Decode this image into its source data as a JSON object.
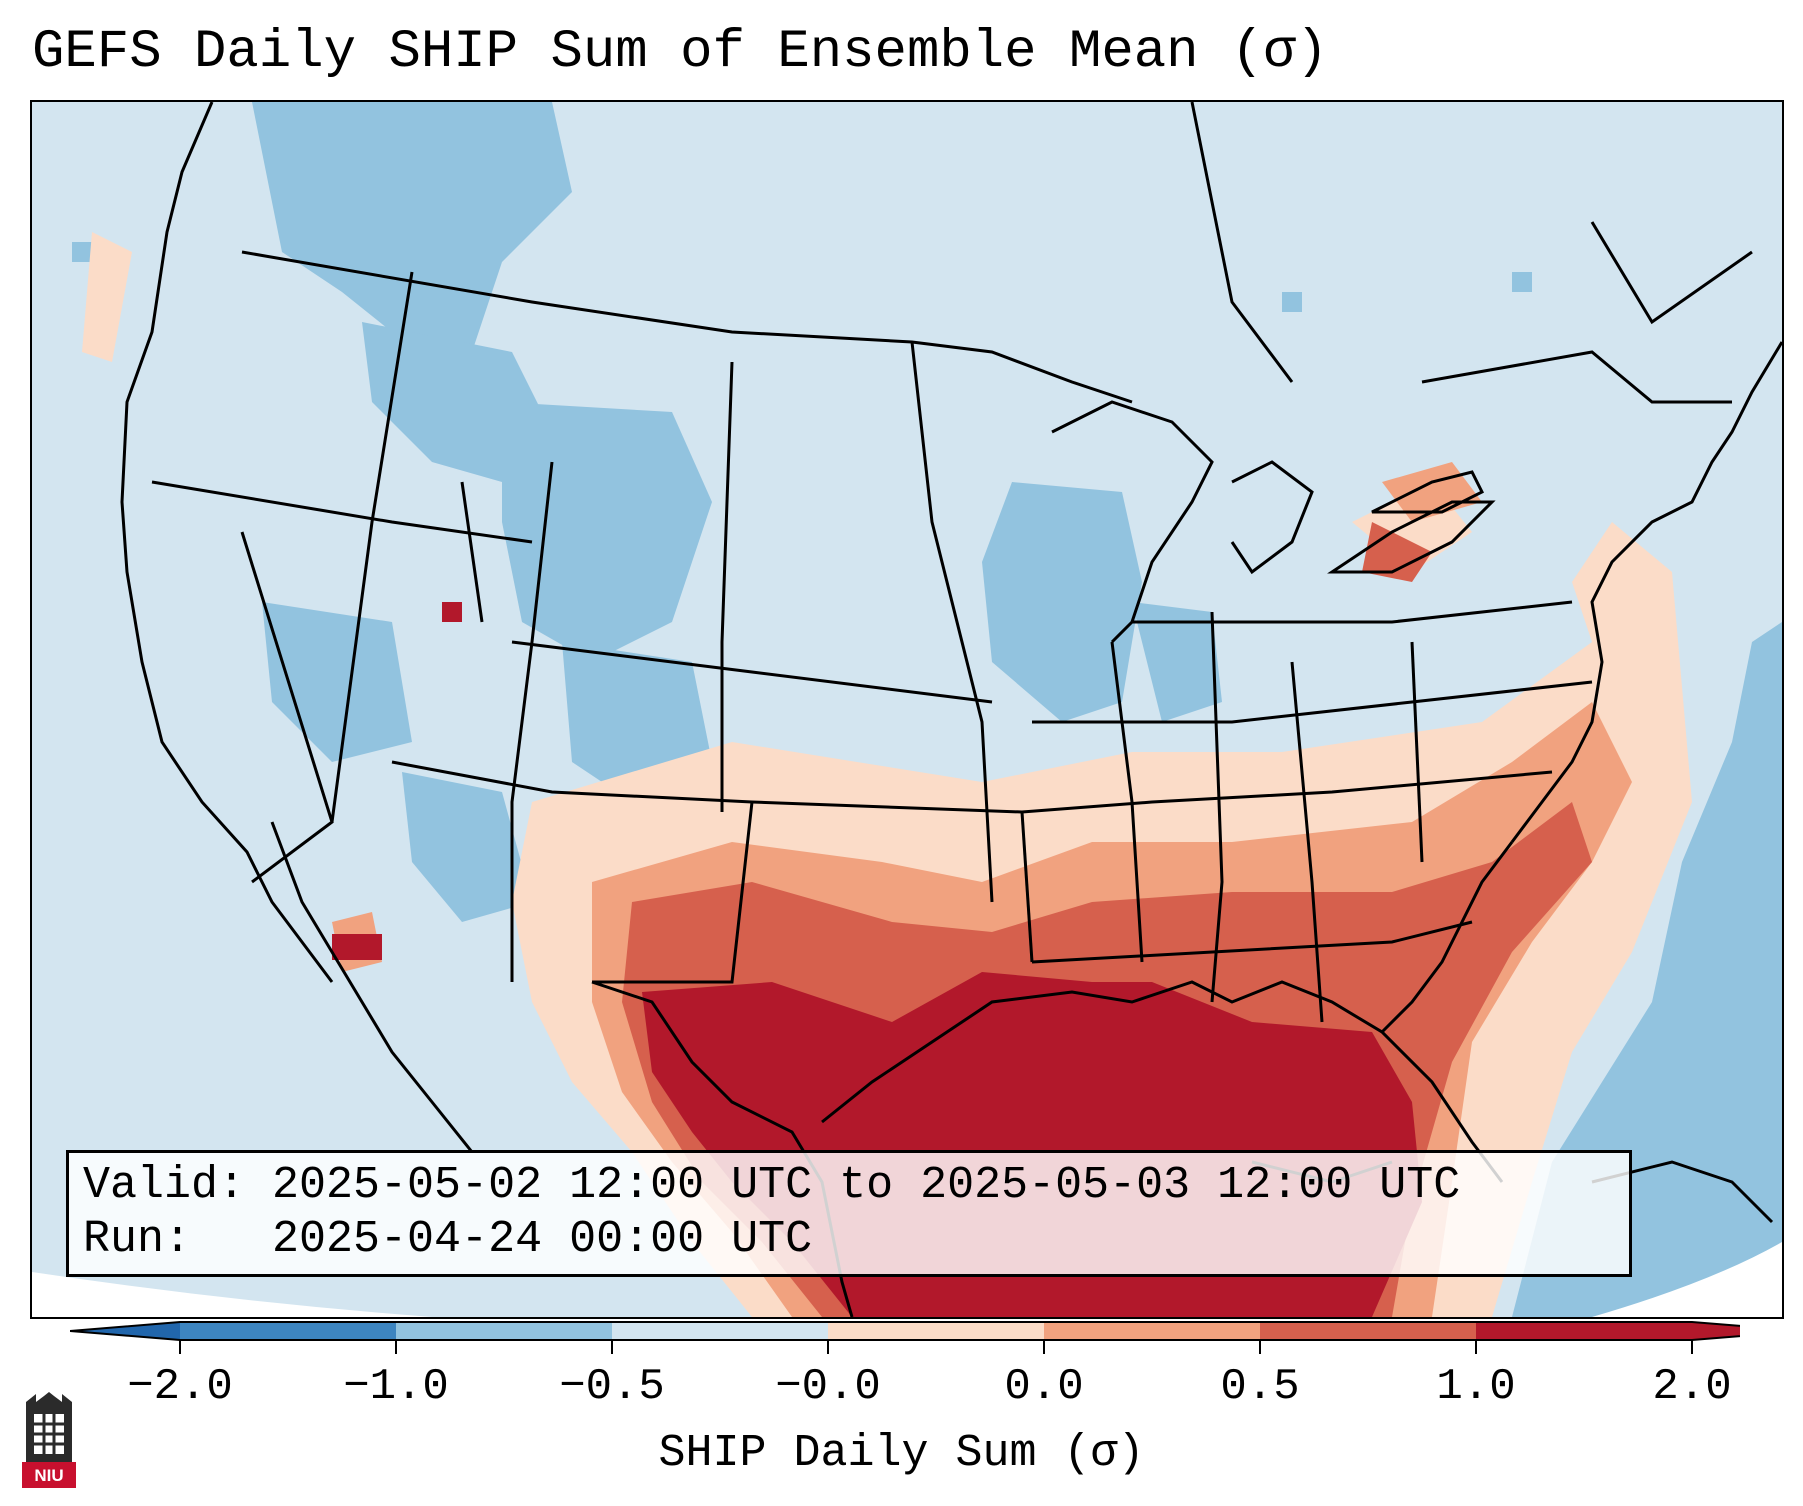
{
  "title": "GEFS Daily SHIP Sum of Ensemble Mean (σ)",
  "info": {
    "valid": "Valid: 2025-05-02 12:00 UTC to 2025-05-03 12:00 UTC",
    "run": "Run:   2025-04-24 00:00 UTC"
  },
  "colorbar": {
    "label": "SHIP Daily Sum (σ)",
    "ticks": [
      "−2.0",
      "−1.0",
      "−0.5",
      "−0.0",
      "0.0",
      "0.5",
      "1.0",
      "2.0"
    ],
    "colors": [
      "#3d85c0",
      "#92c3df",
      "#d3e5f0",
      "#fbdcc8",
      "#f1a27f",
      "#d6604d",
      "#b2182b"
    ],
    "under_color": "#2166ac",
    "over_color": "#b2182b"
  },
  "logo": {
    "text": "NIU"
  },
  "map_colors": {
    "ocean_background": "#d3e5f0",
    "light_blue": "#92c3df",
    "pale_red": "#fbdcc8",
    "light_red": "#f1a27f",
    "medium_red": "#d6604d",
    "dark_red": "#b2182b",
    "line": "#000000"
  }
}
